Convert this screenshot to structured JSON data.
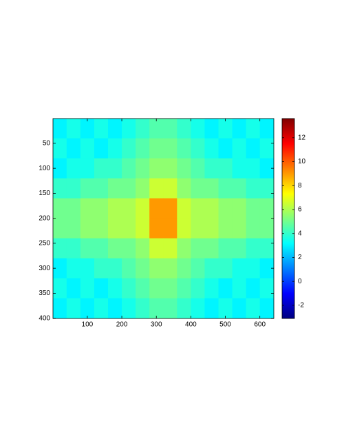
{
  "chart_data": {
    "type": "heatmap",
    "colormap": "jet",
    "x_edges": [
      0,
      40,
      80,
      120,
      160,
      200,
      240,
      280,
      320,
      360,
      400,
      440,
      480,
      520,
      560,
      600,
      640
    ],
    "y_edges": [
      0,
      40,
      80,
      120,
      160,
      200,
      240,
      280,
      320,
      360,
      400
    ],
    "z": [
      [
        3,
        3.5,
        3,
        3.5,
        3,
        3.5,
        4,
        4.5,
        4.5,
        4,
        3.5,
        3,
        3.5,
        3,
        3.5,
        3
      ],
      [
        3.5,
        3,
        3.5,
        3,
        3.5,
        4,
        4.5,
        5,
        5,
        4.5,
        4,
        3.5,
        3,
        3.5,
        3,
        3.5
      ],
      [
        3,
        3.5,
        3.5,
        4,
        4,
        4.5,
        5,
        5.5,
        5.5,
        5,
        4.5,
        4,
        4,
        3.5,
        3.5,
        3
      ],
      [
        4,
        4,
        4.5,
        4.5,
        5,
        5,
        5.5,
        6.5,
        6.5,
        5.5,
        5,
        5,
        4.5,
        4.5,
        4,
        4
      ],
      [
        5,
        5,
        5.5,
        5.5,
        6,
        6,
        6.5,
        9,
        9,
        6.5,
        6,
        6,
        5.5,
        5.5,
        5,
        5
      ],
      [
        5,
        5,
        5.5,
        5.5,
        6,
        6,
        6.5,
        9,
        9,
        6.5,
        6,
        6,
        5.5,
        5.5,
        5,
        5
      ],
      [
        4,
        4,
        4.5,
        4.5,
        5,
        5,
        5.5,
        6.5,
        6.5,
        5.5,
        5,
        5,
        4.5,
        4.5,
        4,
        4
      ],
      [
        3,
        3.5,
        3.5,
        4,
        4,
        4.5,
        5,
        5.5,
        5.5,
        5,
        4.5,
        4,
        4,
        3.5,
        3.5,
        3
      ],
      [
        3.5,
        3,
        3.5,
        3,
        3.5,
        4,
        4.5,
        5,
        5,
        4.5,
        4,
        3.5,
        3,
        3.5,
        3,
        3.5
      ],
      [
        3,
        3.5,
        3,
        3.5,
        3,
        3.5,
        4,
        4.5,
        4.5,
        4,
        3.5,
        3,
        3.5,
        3,
        3.5,
        3
      ]
    ],
    "xlim": [
      0.5,
      640.5
    ],
    "xticks": [
      100,
      200,
      300,
      400,
      500,
      600
    ],
    "ylim": [
      0.5,
      400.5
    ],
    "y_reversed": true,
    "yticks": [
      50,
      100,
      150,
      200,
      250,
      300,
      350,
      400
    ],
    "clim": [
      -3.1,
      13.6
    ],
    "cticks": [
      -2,
      0,
      2,
      4,
      6,
      8,
      10,
      12
    ]
  }
}
